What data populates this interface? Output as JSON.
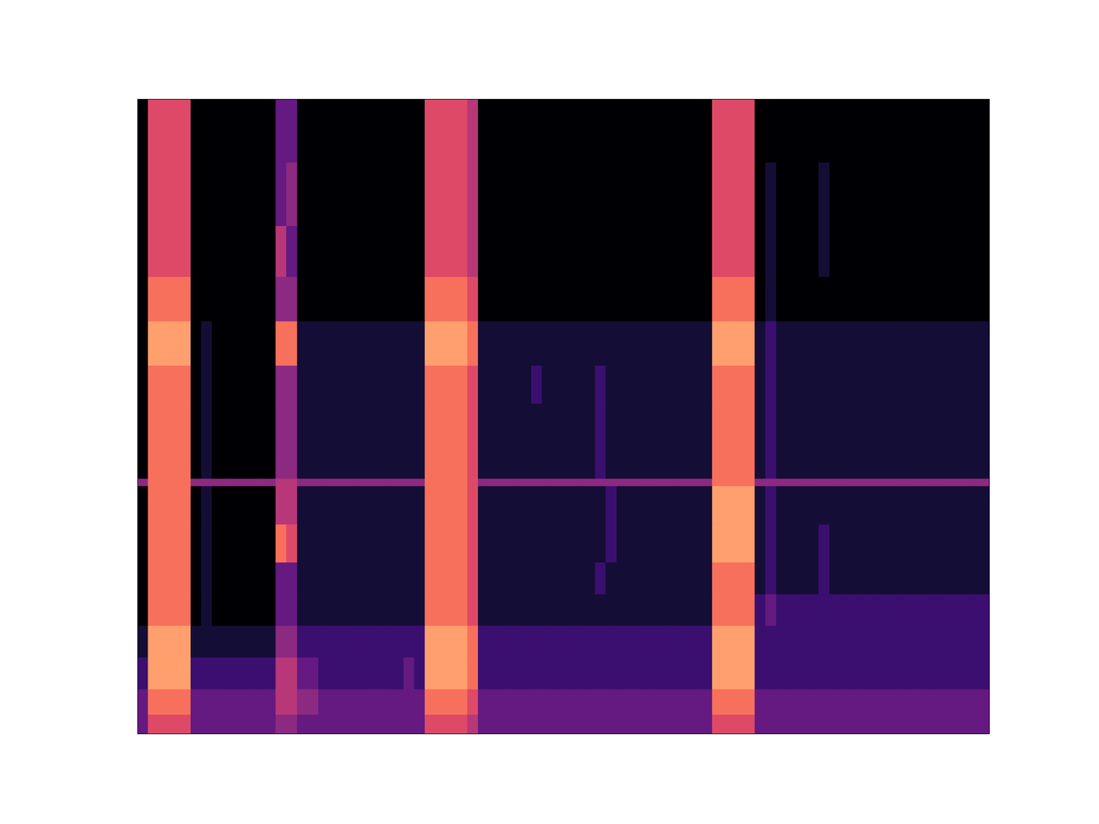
{
  "chart_data": {
    "type": "heatmap",
    "color": "magma",
    "tick_labels": false,
    "xlim": [
      0,
      80
    ],
    "ylim": [
      0,
      100
    ],
    "value_range": [
      0,
      10
    ],
    "y_edges": [
      0,
      3,
      7,
      12,
      17,
      22,
      27,
      33,
      39,
      40.2,
      46,
      52,
      58,
      65,
      72,
      80,
      90,
      100
    ],
    "cells": [
      [
        3,
        6,
        6,
        6,
        6,
        3,
        3,
        3,
        3,
        3,
        3,
        3,
        3,
        4,
        4,
        3,
        3,
        3,
        3,
        3,
        3,
        3,
        3,
        3,
        3,
        3,
        3,
        6,
        6,
        6,
        6,
        5,
        3,
        3,
        3,
        3,
        3,
        3,
        3,
        3,
        3,
        3,
        3,
        3,
        3,
        3,
        3,
        3,
        3,
        3,
        3,
        3,
        3,
        3,
        6,
        6,
        6,
        6,
        3,
        3,
        3,
        3,
        3,
        3,
        3,
        3,
        3,
        3,
        3,
        3,
        3,
        3,
        3,
        3,
        3,
        3,
        3,
        3,
        3,
        3
      ],
      [
        3,
        7,
        7,
        7,
        7,
        3,
        3,
        3,
        3,
        3,
        3,
        3,
        3,
        5,
        5,
        4,
        4,
        3,
        3,
        3,
        3,
        3,
        3,
        3,
        3,
        3,
        3,
        7,
        7,
        7,
        7,
        6,
        3,
        3,
        3,
        3,
        3,
        3,
        3,
        3,
        3,
        3,
        3,
        3,
        3,
        3,
        3,
        3,
        3,
        3,
        3,
        3,
        3,
        3,
        7,
        7,
        7,
        7,
        3,
        3,
        3,
        3,
        3,
        3,
        3,
        3,
        3,
        3,
        3,
        3,
        3,
        3,
        3,
        3,
        3,
        3,
        3,
        3,
        3,
        3
      ],
      [
        2,
        8,
        8,
        8,
        8,
        2,
        2,
        2,
        2,
        2,
        2,
        2,
        2,
        5,
        5,
        3,
        3,
        2,
        2,
        2,
        2,
        2,
        2,
        2,
        2,
        3,
        2,
        8,
        8,
        8,
        8,
        7,
        2,
        2,
        2,
        2,
        2,
        2,
        2,
        2,
        2,
        2,
        2,
        2,
        2,
        2,
        2,
        2,
        2,
        2,
        2,
        2,
        2,
        2,
        8,
        8,
        8,
        8,
        2,
        2,
        2,
        2,
        2,
        2,
        2,
        2,
        2,
        2,
        2,
        2,
        2,
        2,
        2,
        2,
        2,
        2,
        2,
        2,
        2,
        2
      ],
      [
        1,
        8,
        8,
        8,
        8,
        1,
        1,
        1,
        1,
        1,
        1,
        1,
        1,
        4,
        4,
        2,
        2,
        2,
        2,
        2,
        2,
        2,
        2,
        2,
        2,
        2,
        2,
        8,
        8,
        8,
        8,
        7,
        2,
        2,
        2,
        2,
        2,
        2,
        2,
        2,
        2,
        2,
        2,
        2,
        2,
        2,
        2,
        2,
        2,
        2,
        2,
        2,
        2,
        2,
        8,
        8,
        8,
        8,
        2,
        2,
        2,
        2,
        2,
        2,
        2,
        2,
        2,
        2,
        2,
        2,
        2,
        2,
        2,
        2,
        2,
        2,
        2,
        2,
        2,
        2
      ],
      [
        0,
        7,
        7,
        7,
        7,
        0,
        1,
        0,
        0,
        0,
        0,
        0,
        0,
        3,
        3,
        1,
        1,
        1,
        1,
        1,
        1,
        1,
        1,
        1,
        1,
        1,
        1,
        7,
        7,
        7,
        7,
        6,
        1,
        1,
        1,
        1,
        1,
        1,
        1,
        1,
        1,
        1,
        1,
        1,
        1,
        1,
        1,
        1,
        1,
        1,
        1,
        1,
        1,
        1,
        7,
        7,
        7,
        7,
        2,
        3,
        2,
        2,
        2,
        2,
        2,
        2,
        2,
        2,
        2,
        2,
        2,
        2,
        2,
        2,
        2,
        2,
        2,
        2,
        2,
        2
      ],
      [
        0,
        7,
        7,
        7,
        7,
        0,
        1,
        0,
        0,
        0,
        0,
        0,
        0,
        3,
        3,
        1,
        1,
        1,
        1,
        1,
        1,
        1,
        1,
        1,
        1,
        1,
        1,
        7,
        7,
        7,
        7,
        6,
        1,
        1,
        1,
        1,
        1,
        1,
        1,
        1,
        1,
        1,
        1,
        2,
        1,
        1,
        1,
        1,
        1,
        1,
        1,
        1,
        1,
        1,
        7,
        7,
        7,
        7,
        1,
        2,
        1,
        1,
        1,
        1,
        2,
        1,
        1,
        1,
        1,
        1,
        1,
        1,
        1,
        1,
        1,
        1,
        1,
        1,
        1,
        1
      ],
      [
        0,
        7,
        7,
        7,
        7,
        0,
        1,
        0,
        0,
        0,
        0,
        0,
        0,
        7,
        6,
        1,
        1,
        1,
        1,
        1,
        1,
        1,
        1,
        1,
        1,
        1,
        1,
        7,
        7,
        7,
        7,
        6,
        1,
        1,
        1,
        1,
        1,
        1,
        1,
        1,
        1,
        1,
        1,
        1,
        2,
        1,
        1,
        1,
        1,
        1,
        1,
        1,
        1,
        1,
        8,
        8,
        8,
        8,
        1,
        2,
        1,
        1,
        1,
        1,
        2,
        1,
        1,
        1,
        1,
        1,
        1,
        1,
        1,
        1,
        1,
        1,
        1,
        1,
        1,
        1
      ],
      [
        0,
        7,
        7,
        7,
        7,
        0,
        1,
        0,
        0,
        0,
        0,
        0,
        0,
        5,
        5,
        1,
        1,
        1,
        1,
        1,
        1,
        1,
        1,
        1,
        1,
        1,
        1,
        7,
        7,
        7,
        7,
        6,
        1,
        1,
        1,
        1,
        1,
        1,
        1,
        1,
        1,
        1,
        1,
        1,
        2,
        1,
        1,
        1,
        1,
        1,
        1,
        1,
        1,
        1,
        8,
        8,
        8,
        8,
        1,
        2,
        1,
        1,
        1,
        1,
        1,
        1,
        1,
        1,
        1,
        1,
        1,
        1,
        1,
        1,
        1,
        1,
        1,
        1,
        1,
        1
      ],
      [
        4,
        7,
        7,
        7,
        7,
        4,
        4,
        4,
        4,
        4,
        4,
        4,
        4,
        5,
        5,
        4,
        4,
        4,
        4,
        4,
        4,
        4,
        4,
        4,
        4,
        4,
        4,
        7,
        7,
        7,
        7,
        6,
        4,
        4,
        4,
        4,
        4,
        4,
        4,
        4,
        4,
        4,
        4,
        4,
        4,
        4,
        4,
        4,
        4,
        4,
        4,
        4,
        4,
        4,
        7,
        7,
        7,
        7,
        4,
        4,
        4,
        4,
        4,
        4,
        4,
        4,
        4,
        4,
        4,
        4,
        4,
        4,
        4,
        4,
        4,
        4,
        4,
        4,
        4,
        4
      ],
      [
        0,
        7,
        7,
        7,
        7,
        0,
        1,
        0,
        0,
        0,
        0,
        0,
        0,
        4,
        4,
        1,
        1,
        1,
        1,
        1,
        1,
        1,
        1,
        1,
        1,
        1,
        1,
        7,
        7,
        7,
        7,
        6,
        1,
        1,
        1,
        1,
        1,
        1,
        1,
        1,
        1,
        1,
        1,
        2,
        1,
        1,
        1,
        1,
        1,
        1,
        1,
        1,
        1,
        1,
        7,
        7,
        7,
        7,
        1,
        2,
        1,
        1,
        1,
        1,
        1,
        1,
        1,
        1,
        1,
        1,
        1,
        1,
        1,
        1,
        1,
        1,
        1,
        1,
        1,
        1
      ],
      [
        0,
        7,
        7,
        7,
        7,
        0,
        1,
        0,
        0,
        0,
        0,
        0,
        0,
        4,
        4,
        1,
        1,
        1,
        1,
        1,
        1,
        1,
        1,
        1,
        1,
        1,
        1,
        7,
        7,
        7,
        7,
        6,
        1,
        1,
        1,
        1,
        1,
        1,
        1,
        1,
        1,
        1,
        1,
        2,
        1,
        1,
        1,
        1,
        1,
        1,
        1,
        1,
        1,
        1,
        7,
        7,
        7,
        7,
        1,
        2,
        1,
        1,
        1,
        1,
        1,
        1,
        1,
        1,
        1,
        1,
        1,
        1,
        1,
        1,
        1,
        1,
        1,
        1,
        1,
        1
      ],
      [
        0,
        7,
        7,
        7,
        7,
        0,
        1,
        0,
        0,
        0,
        0,
        0,
        0,
        4,
        4,
        1,
        1,
        1,
        1,
        1,
        1,
        1,
        1,
        1,
        1,
        1,
        1,
        7,
        7,
        7,
        7,
        6,
        1,
        1,
        1,
        1,
        1,
        2,
        1,
        1,
        1,
        1,
        1,
        2,
        1,
        1,
        1,
        1,
        1,
        1,
        1,
        1,
        1,
        1,
        7,
        7,
        7,
        7,
        1,
        2,
        1,
        1,
        1,
        1,
        1,
        1,
        1,
        1,
        1,
        1,
        1,
        1,
        1,
        1,
        1,
        1,
        1,
        1,
        1,
        1
      ],
      [
        0,
        8,
        8,
        8,
        8,
        0,
        1,
        0,
        0,
        0,
        0,
        0,
        0,
        7,
        7,
        1,
        1,
        1,
        1,
        1,
        1,
        1,
        1,
        1,
        1,
        1,
        1,
        8,
        8,
        8,
        8,
        7,
        1,
        1,
        1,
        1,
        1,
        1,
        1,
        1,
        1,
        1,
        1,
        1,
        1,
        1,
        1,
        1,
        1,
        1,
        1,
        1,
        1,
        1,
        8,
        8,
        8,
        8,
        1,
        2,
        1,
        1,
        1,
        1,
        1,
        1,
        1,
        1,
        1,
        1,
        1,
        1,
        1,
        1,
        1,
        1,
        1,
        1,
        1,
        1
      ],
      [
        0,
        7,
        7,
        7,
        7,
        0,
        0,
        0,
        0,
        0,
        0,
        0,
        0,
        4,
        4,
        0,
        0,
        0,
        0,
        0,
        0,
        0,
        0,
        0,
        0,
        0,
        0,
        7,
        7,
        7,
        7,
        6,
        0,
        0,
        0,
        0,
        0,
        0,
        0,
        0,
        0,
        0,
        0,
        0,
        0,
        0,
        0,
        0,
        0,
        0,
        0,
        0,
        0,
        0,
        7,
        7,
        7,
        7,
        0,
        1,
        0,
        0,
        0,
        0,
        0,
        0,
        0,
        0,
        0,
        0,
        0,
        0,
        0,
        0,
        0,
        0,
        0,
        0,
        0,
        0
      ],
      [
        0,
        6,
        6,
        6,
        6,
        0,
        0,
        0,
        0,
        0,
        0,
        0,
        0,
        5,
        3,
        0,
        0,
        0,
        0,
        0,
        0,
        0,
        0,
        0,
        0,
        0,
        0,
        6,
        6,
        6,
        6,
        5,
        0,
        0,
        0,
        0,
        0,
        0,
        0,
        0,
        0,
        0,
        0,
        0,
        0,
        0,
        0,
        0,
        0,
        0,
        0,
        0,
        0,
        0,
        6,
        6,
        6,
        6,
        0,
        1,
        0,
        0,
        0,
        0,
        1,
        0,
        0,
        0,
        0,
        0,
        0,
        0,
        0,
        0,
        0,
        0,
        0,
        0,
        0,
        0
      ],
      [
        0,
        6,
        6,
        6,
        6,
        0,
        0,
        0,
        0,
        0,
        0,
        0,
        0,
        3,
        4,
        0,
        0,
        0,
        0,
        0,
        0,
        0,
        0,
        0,
        0,
        0,
        0,
        6,
        6,
        6,
        6,
        5,
        0,
        0,
        0,
        0,
        0,
        0,
        0,
        0,
        0,
        0,
        0,
        0,
        0,
        0,
        0,
        0,
        0,
        0,
        0,
        0,
        0,
        0,
        6,
        6,
        6,
        6,
        0,
        1,
        0,
        0,
        0,
        0,
        1,
        0,
        0,
        0,
        0,
        0,
        0,
        0,
        0,
        0,
        0,
        0,
        0,
        0,
        0,
        0
      ],
      [
        0,
        6,
        6,
        6,
        6,
        0,
        0,
        0,
        0,
        0,
        0,
        0,
        0,
        3,
        3,
        0,
        0,
        0,
        0,
        0,
        0,
        0,
        0,
        0,
        0,
        0,
        0,
        6,
        6,
        6,
        6,
        5,
        0,
        0,
        0,
        0,
        0,
        0,
        0,
        0,
        0,
        0,
        0,
        0,
        0,
        0,
        0,
        0,
        0,
        0,
        0,
        0,
        0,
        0,
        6,
        6,
        6,
        6,
        0,
        0,
        0,
        0,
        0,
        0,
        0,
        0,
        0,
        0,
        0,
        0,
        0,
        0,
        0,
        0,
        0,
        0,
        0,
        0,
        0,
        0
      ]
    ]
  }
}
